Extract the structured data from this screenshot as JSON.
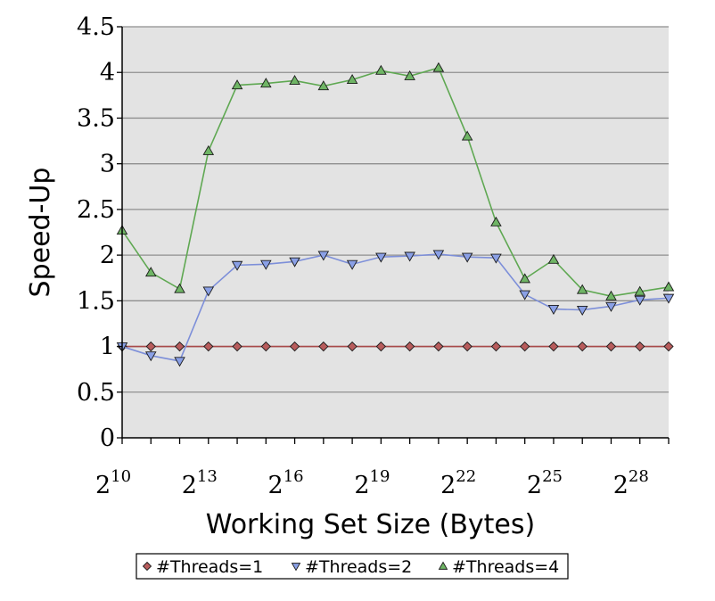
{
  "chart_data": {
    "type": "line",
    "xlabel": "Working Set Size (Bytes)",
    "ylabel": "Speed-Up",
    "x_exponents": [
      10,
      11,
      12,
      13,
      14,
      15,
      16,
      17,
      18,
      19,
      20,
      21,
      22,
      23,
      24,
      25,
      26,
      27,
      28,
      29
    ],
    "x_tick_base": "2",
    "x_tick_exponents": [
      "10",
      "13",
      "16",
      "19",
      "22",
      "25",
      "28"
    ],
    "y_ticks": [
      "0",
      "0.5",
      "1",
      "1.5",
      "2",
      "2.5",
      "3",
      "3.5",
      "4",
      "4.5"
    ],
    "ylim": [
      0,
      4.5
    ],
    "grid": "horizontal",
    "background": "#e3e3e3",
    "legend_position": "bottom",
    "series": [
      {
        "name": "#Threads=1",
        "marker": "diamond",
        "color": "#a94a4a",
        "marker_fill": "#b85c5c",
        "values": [
          1.0,
          1.0,
          1.0,
          1.0,
          1.0,
          1.0,
          1.0,
          1.0,
          1.0,
          1.0,
          1.0,
          1.0,
          1.0,
          1.0,
          1.0,
          1.0,
          1.0,
          1.0,
          1.0,
          1.0
        ]
      },
      {
        "name": "#Threads=2",
        "marker": "triangle-down",
        "color": "#7d8fd9",
        "marker_fill": "#8aa0e6",
        "values": [
          1.0,
          0.9,
          0.84,
          1.61,
          1.89,
          1.9,
          1.93,
          2.0,
          1.9,
          1.98,
          1.99,
          2.01,
          1.98,
          1.97,
          1.57,
          1.41,
          1.4,
          1.44,
          1.51,
          1.53
        ]
      },
      {
        "name": "#Threads=4",
        "marker": "triangle-up",
        "color": "#5fa852",
        "marker_fill": "#6fb565",
        "values": [
          2.27,
          1.81,
          1.63,
          3.14,
          3.86,
          3.88,
          3.91,
          3.85,
          3.92,
          4.02,
          3.96,
          4.05,
          3.3,
          2.36,
          1.74,
          1.95,
          1.62,
          1.55,
          1.6,
          1.65
        ]
      }
    ]
  }
}
